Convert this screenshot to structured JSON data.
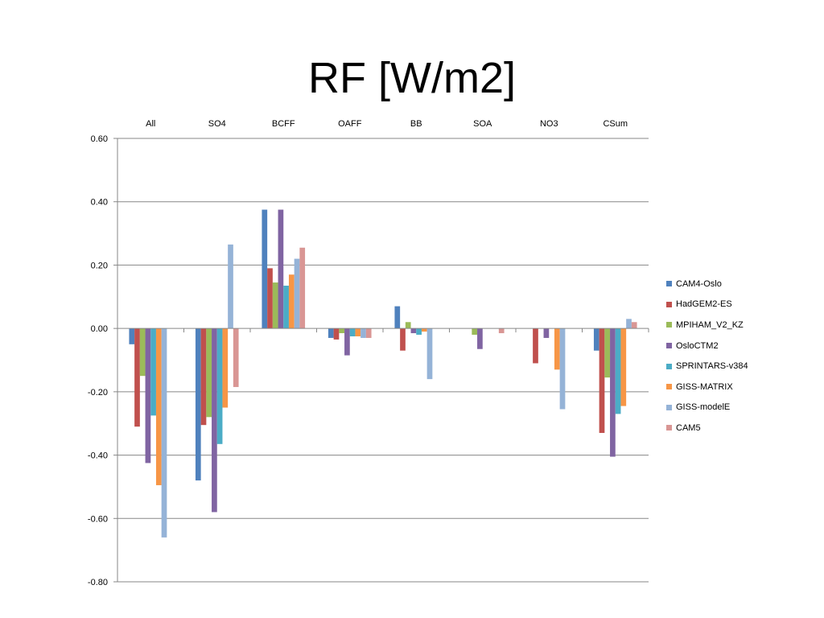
{
  "slide": {
    "title": "RF [W/m2]"
  },
  "chart_data": {
    "type": "bar",
    "categories": [
      "All",
      "SO4",
      "BCFF",
      "OAFF",
      "BB",
      "SOA",
      "NO3",
      "CSum"
    ],
    "ylim": [
      -0.8,
      0.6
    ],
    "yticks": [
      "0.60",
      "0.40",
      "0.20",
      "0.00",
      "-0.20",
      "-0.40",
      "-0.60",
      "-0.80"
    ],
    "ytick_values": [
      0.6,
      0.4,
      0.2,
      0.0,
      -0.2,
      -0.4,
      -0.6,
      -0.8
    ],
    "grid": true,
    "legend_position": "right",
    "category_axis_position": "top",
    "series": [
      {
        "name": "CAM4-Oslo",
        "color": "#4f81bd",
        "values": [
          -0.05,
          -0.48,
          0.375,
          -0.03,
          0.07,
          null,
          null,
          -0.07
        ]
      },
      {
        "name": "HadGEM2-ES",
        "color": "#c0504d",
        "values": [
          -0.31,
          -0.305,
          0.19,
          -0.035,
          -0.07,
          null,
          -0.11,
          -0.33
        ]
      },
      {
        "name": "MPIHAM_V2_KZ",
        "color": "#9bbb59",
        "values": [
          -0.15,
          -0.28,
          0.145,
          -0.015,
          0.02,
          -0.02,
          null,
          -0.155
        ]
      },
      {
        "name": "OsloCTM2",
        "color": "#8064a2",
        "values": [
          -0.425,
          -0.58,
          0.375,
          -0.085,
          -0.015,
          -0.065,
          -0.03,
          -0.405
        ]
      },
      {
        "name": "SPRINTARS-v384",
        "color": "#4bacc6",
        "values": [
          -0.275,
          -0.365,
          0.135,
          -0.025,
          -0.02,
          null,
          null,
          -0.27
        ]
      },
      {
        "name": "GISS-MATRIX",
        "color": "#f79646",
        "values": [
          -0.495,
          -0.25,
          0.17,
          -0.025,
          -0.01,
          null,
          -0.13,
          -0.245
        ]
      },
      {
        "name": "GISS-modelE",
        "color": "#95b3d7",
        "values": [
          -0.66,
          0.265,
          0.22,
          -0.03,
          -0.16,
          null,
          -0.255,
          0.03
        ]
      },
      {
        "name": "CAM5",
        "color": "#d99694",
        "values": [
          null,
          -0.185,
          0.255,
          -0.03,
          null,
          -0.015,
          null,
          0.02
        ]
      }
    ]
  }
}
